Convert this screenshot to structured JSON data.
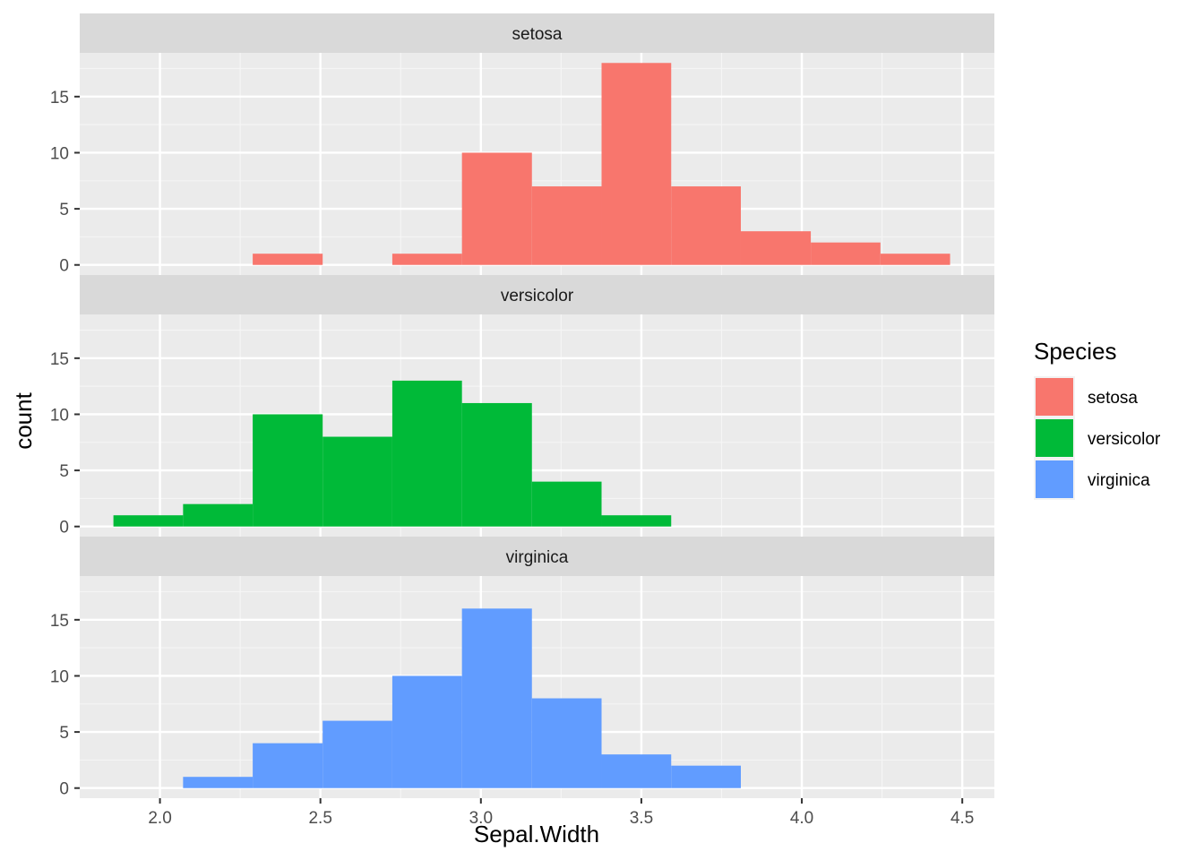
{
  "chart_data": {
    "type": "bar",
    "subtype": "faceted-histogram",
    "xlabel": "Sepal.Width",
    "ylabel": "count",
    "xlim": [
      1.75,
      4.6
    ],
    "ylim": [
      -0.9,
      18.9
    ],
    "x_ticks": [
      2.0,
      2.5,
      3.0,
      3.5,
      4.0,
      4.5
    ],
    "x_tick_labels": [
      "2.0",
      "2.5",
      "3.0",
      "3.5",
      "4.0",
      "4.5"
    ],
    "y_ticks": [
      0,
      5,
      10,
      15
    ],
    "y_tick_labels": [
      "0",
      "5",
      "10",
      "15"
    ],
    "grid": true,
    "bin_edges": [
      1.855,
      2.072,
      2.289,
      2.507,
      2.724,
      2.941,
      3.159,
      3.376,
      3.593,
      3.81,
      4.028,
      4.245,
      4.462
    ],
    "legend": {
      "title": "Species",
      "position": "right",
      "entries": [
        "setosa",
        "versicolor",
        "virginica"
      ]
    },
    "series": [
      {
        "name": "setosa",
        "color": "#F8766D",
        "values": [
          0,
          0,
          1,
          0,
          1,
          10,
          7,
          18,
          7,
          3,
          2,
          1
        ]
      },
      {
        "name": "versicolor",
        "color": "#00BA38",
        "values": [
          1,
          2,
          10,
          8,
          13,
          11,
          4,
          1,
          0,
          0,
          0,
          0
        ]
      },
      {
        "name": "virginica",
        "color": "#619CFF",
        "values": [
          0,
          1,
          4,
          6,
          10,
          16,
          8,
          3,
          2,
          0,
          0,
          0
        ]
      }
    ]
  }
}
